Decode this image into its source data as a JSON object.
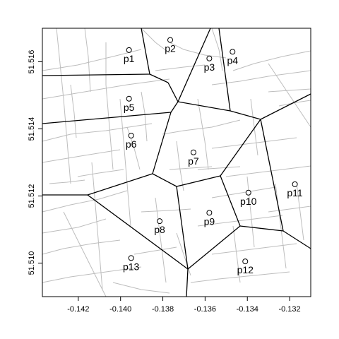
{
  "x_axis": {
    "ticks": [
      {
        "value": -0.142,
        "label": "-0.142"
      },
      {
        "value": -0.14,
        "label": "-0.140"
      },
      {
        "value": -0.138,
        "label": "-0.138"
      },
      {
        "value": -0.136,
        "label": "-0.136"
      },
      {
        "value": -0.134,
        "label": "-0.134"
      },
      {
        "value": -0.132,
        "label": "-0.132"
      }
    ]
  },
  "y_axis": {
    "ticks": [
      {
        "value": 51.51,
        "label": "51.510"
      },
      {
        "value": 51.512,
        "label": "51.512"
      },
      {
        "value": 51.514,
        "label": "51.514"
      },
      {
        "value": 51.516,
        "label": "51.516"
      }
    ]
  },
  "extent": {
    "lon": [
      -0.1437,
      -0.131
    ],
    "lat": [
      51.509,
      51.517
    ]
  },
  "points": [
    {
      "label": "p1",
      "lon": -0.1396,
      "lat": 51.51635
    },
    {
      "label": "p2",
      "lon": -0.13765,
      "lat": 51.51665
    },
    {
      "label": "p3",
      "lon": -0.1358,
      "lat": 51.5161
    },
    {
      "label": "p4",
      "lon": -0.1347,
      "lat": 51.5163
    },
    {
      "label": "p5",
      "lon": -0.1396,
      "lat": 51.5149
    },
    {
      "label": "p6",
      "lon": -0.1395,
      "lat": 51.5138
    },
    {
      "label": "p7",
      "lon": -0.13655,
      "lat": 51.5133
    },
    {
      "label": "p8",
      "lon": -0.13815,
      "lat": 51.51125
    },
    {
      "label": "p9",
      "lon": -0.1358,
      "lat": 51.5115
    },
    {
      "label": "p10",
      "lon": -0.13395,
      "lat": 51.5121
    },
    {
      "label": "p11",
      "lon": -0.13175,
      "lat": 51.51235
    },
    {
      "label": "p12",
      "lon": -0.1341,
      "lat": 51.51005
    },
    {
      "label": "p13",
      "lon": -0.1395,
      "lat": 51.51015
    }
  ],
  "colors": {
    "voronoi": "#000000",
    "streets": "#bdbdbd",
    "frame": "#000000"
  }
}
